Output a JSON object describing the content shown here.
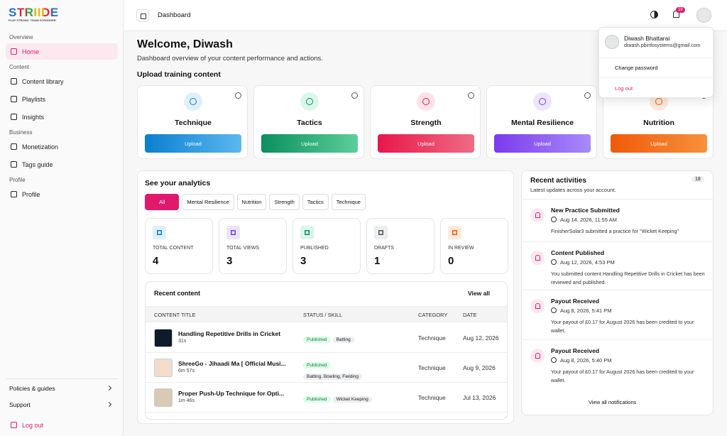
{
  "sidebar": {
    "logo": "STRIIDE",
    "tagline": "PLAY STRONG. TRAIN STRONGER.",
    "sections": [
      {
        "label": "Overview",
        "items": [
          "Home"
        ]
      },
      {
        "label": "Content",
        "items": [
          "Content library",
          "Playlists",
          "Insights"
        ]
      },
      {
        "label": "Business",
        "items": [
          "Monetization",
          "Tags guide"
        ]
      },
      {
        "label": "Profile",
        "items": [
          "Profile"
        ]
      }
    ],
    "footer": [
      "Policies & guides",
      "Support"
    ],
    "logout": "Log out"
  },
  "topbar": {
    "title": "Dashboard",
    "notification_count": 18
  },
  "user_menu": {
    "name": "Diwash Bhattarai",
    "email": "diwash.pbinfosystems@gmail.com",
    "items": [
      "Change password",
      "Log out"
    ]
  },
  "welcome": {
    "title": "Welcome, Diwash",
    "subtitle": "Dashboard overview of your content performance and actions."
  },
  "upload": {
    "heading": "Upload training content",
    "cards": [
      {
        "name": "Technique",
        "button": "Upload"
      },
      {
        "name": "Tactics",
        "button": "Upload"
      },
      {
        "name": "Strength",
        "button": "Upload"
      },
      {
        "name": "Mental Resilience",
        "button": "Upload"
      },
      {
        "name": "Nutrition",
        "button": "Upload"
      }
    ]
  },
  "analytics": {
    "heading": "See your analytics",
    "filters": [
      "All",
      "Mental Resilience",
      "Nutrition",
      "Strength",
      "Tactics",
      "Technique"
    ],
    "stats": [
      {
        "label": "TOTAL CONTENT",
        "value": 4
      },
      {
        "label": "TOTAL VIEWS",
        "value": 3
      },
      {
        "label": "PUBLISHED",
        "value": 3
      },
      {
        "label": "DRAFTS",
        "value": 1
      },
      {
        "label": "IN REVIEW",
        "value": 0
      }
    ]
  },
  "recent_content": {
    "heading": "Recent content",
    "view_all": "View all",
    "columns": [
      "CONTENT TITLE",
      "STATUS / SKILL",
      "CATEGORY",
      "DATE"
    ],
    "rows": [
      {
        "title": "Handling Repetitive Drills in Cricket",
        "duration": "31s",
        "status": "Published",
        "skills": "Batting",
        "category": "Technique",
        "date": "Aug 12, 2026"
      },
      {
        "title": "ShreeGo - Jihaadi Ma [ Official Musi...",
        "duration": "6m 57s",
        "status": "Published",
        "skills": "Batting, Bowling, Fielding",
        "category": "Technique",
        "date": "Aug 9, 2026"
      },
      {
        "title": "Proper Push-Up Technique for Opti...",
        "duration": "1m 46s",
        "status": "Published",
        "skills": "Wicket Keeping",
        "category": "Technique",
        "date": "Jul 13, 2026"
      }
    ]
  },
  "activities": {
    "heading": "Recent activities",
    "count": 18,
    "subtitle": "Latest updates across your account.",
    "items": [
      {
        "title": "New Practice Submitted",
        "time": "Aug 14, 2026, 11:55 AM",
        "message": "FinisherSolar3 submitted a practice for \"Wicket Keeping\""
      },
      {
        "title": "Content Published",
        "time": "Aug 12, 2026, 4:53 PM",
        "message": "You submitted content Handling Repetitive Drills in Cricket has been reviewed and published."
      },
      {
        "title": "Payout Received",
        "time": "Aug 8, 2026, 5:41 PM",
        "message": "Your payout of £0.17 for August 2026 has been credited to your wallet."
      },
      {
        "title": "Payout Received",
        "time": "Aug 8, 2026, 5:40 PM",
        "message": "Your payout of £0.17 for August 2026 has been credited to your wallet."
      }
    ],
    "view_all": "View all notifications"
  }
}
